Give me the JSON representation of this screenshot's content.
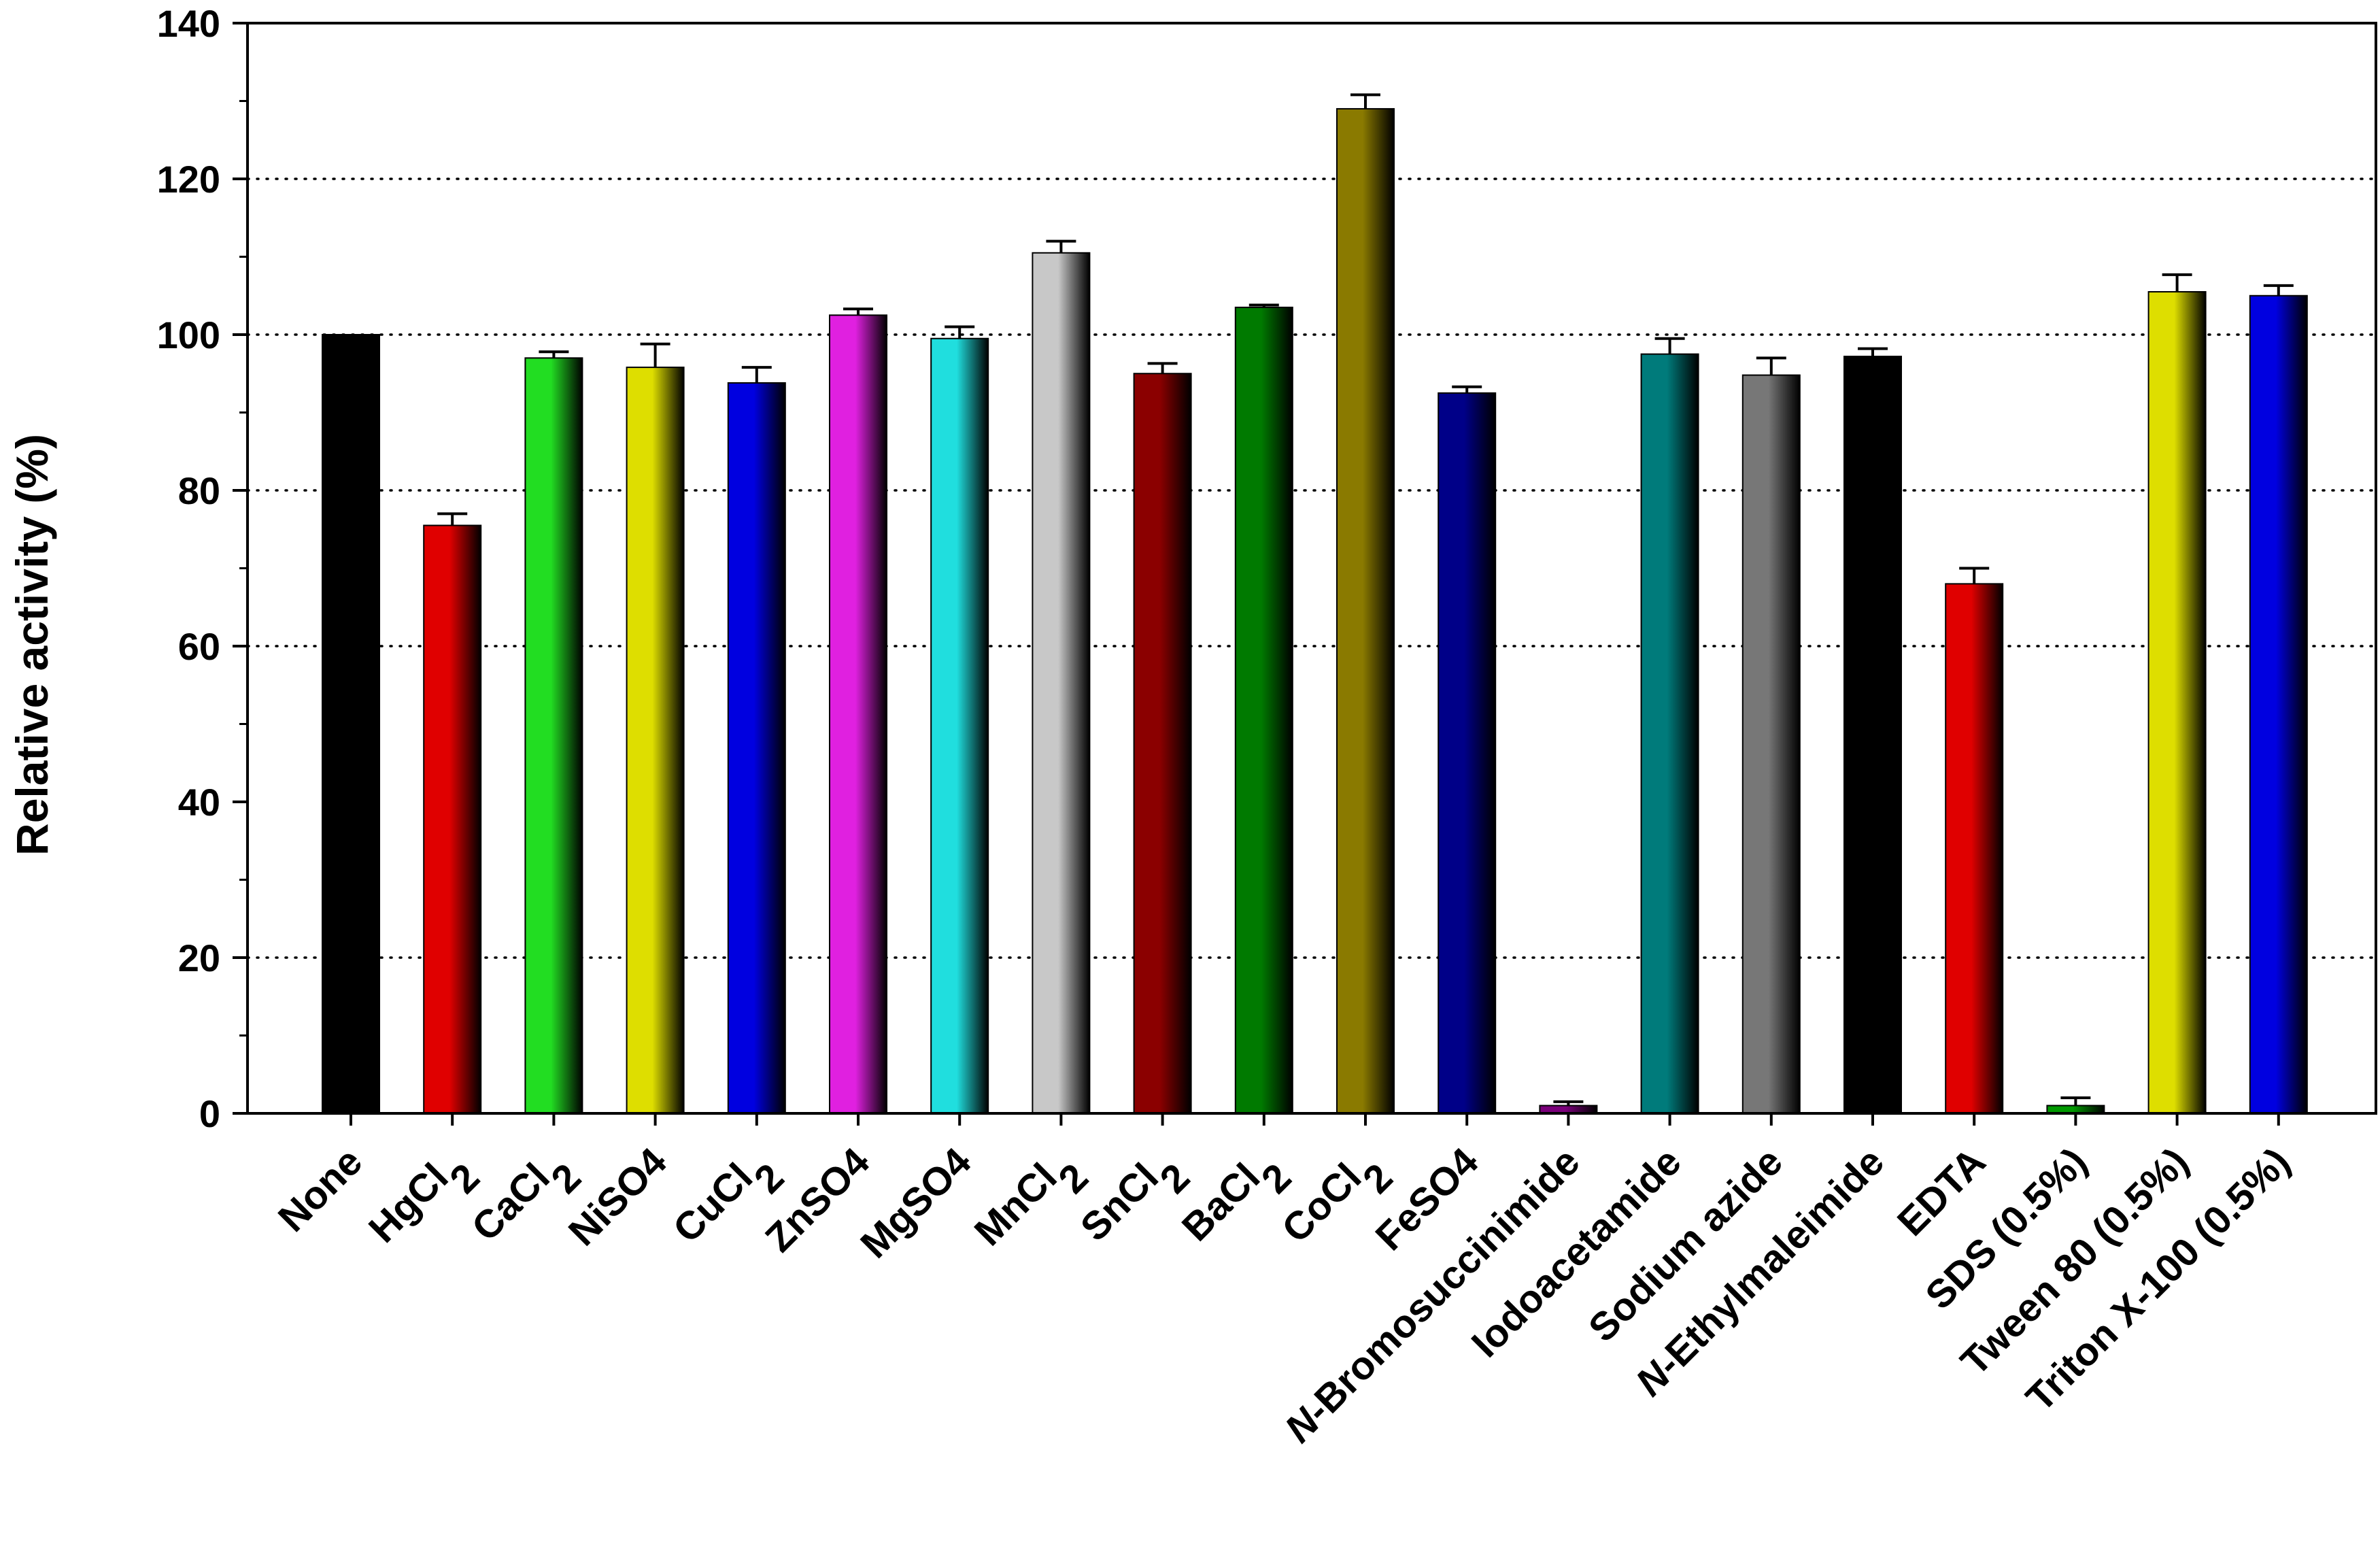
{
  "chart_data": {
    "type": "bar",
    "title": "",
    "xlabel": "",
    "ylabel": "Relative activity (%)",
    "ylim": [
      0,
      140
    ],
    "yticks": [
      0,
      20,
      40,
      60,
      80,
      100,
      120,
      140
    ],
    "grid": "dotted horizontal at 20, 60, 80, 100, 120",
    "legend": "none",
    "categories": [
      {
        "label": "None"
      },
      {
        "label": "HgCl",
        "sub": "2"
      },
      {
        "label": "CaCl",
        "sub": "2"
      },
      {
        "label": "NiSO4"
      },
      {
        "label": "CuCl",
        "sub": "2"
      },
      {
        "label": "ZnSO4"
      },
      {
        "label": "MgSO4"
      },
      {
        "label": "MnCl",
        "sub": "2"
      },
      {
        "label": "SnCl",
        "sub": "2"
      },
      {
        "label": "BaCl",
        "sub": "2"
      },
      {
        "label": "CoCl",
        "sub": "2"
      },
      {
        "label": "FeSO4"
      },
      {
        "label": "-Bromosuccinimide",
        "prefix": "N"
      },
      {
        "label": "Iodoacetamide"
      },
      {
        "label": "Sodium azide"
      },
      {
        "label": "-Ethylmaleimide",
        "prefix": "N"
      },
      {
        "label": "EDTA"
      },
      {
        "label": "SDS (0.5%)"
      },
      {
        "label": "Tween 80 (0.5%)"
      },
      {
        "label": "Triton X-100 (0.5%)"
      }
    ],
    "values": [
      100,
      75.5,
      97,
      95.8,
      93.8,
      102.5,
      99.5,
      110.5,
      95,
      103.5,
      129,
      92.5,
      1,
      97.5,
      94.8,
      97.2,
      68,
      1,
      105.5,
      105
    ],
    "errors": [
      0,
      1.5,
      0.8,
      3,
      2,
      0.8,
      1.5,
      1.5,
      1.3,
      0.3,
      1.8,
      0.8,
      0.5,
      2,
      2.2,
      1,
      2,
      1,
      2.2,
      1.3
    ],
    "colors": [
      "#000000",
      "#e00000",
      "#22dd22",
      "#dede00",
      "#0000e0",
      "#e020e0",
      "#20dede",
      "#c8c8c8",
      "#8b0000",
      "#007a00",
      "#8a7a00",
      "#000088",
      "#7a007a",
      "#007b7b",
      "#777777",
      "#000000",
      "#e00000",
      "#009900",
      "#dede00",
      "#0000e0"
    ]
  }
}
